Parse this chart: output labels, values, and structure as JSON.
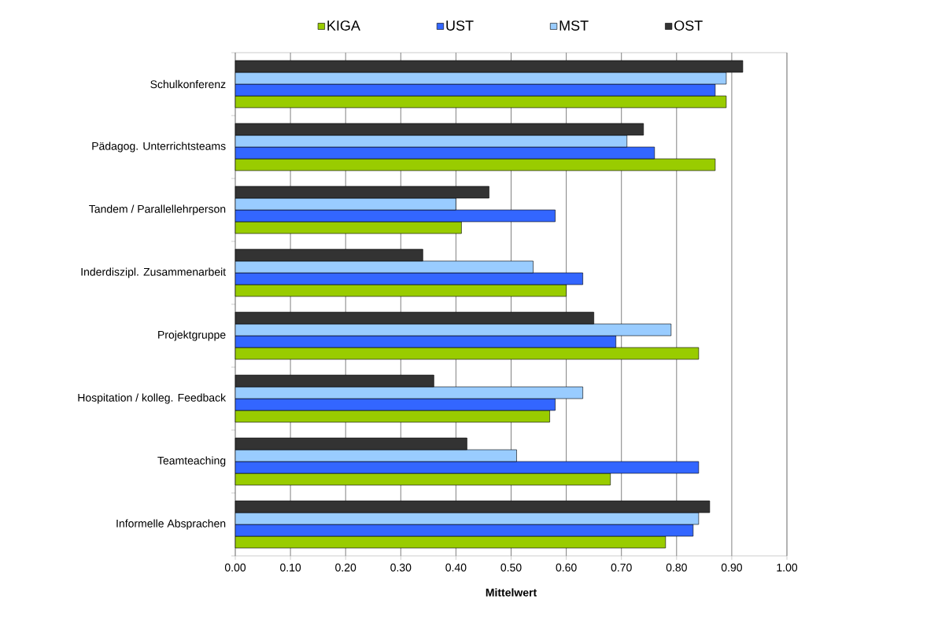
{
  "chart_data": {
    "type": "bar",
    "orientation": "horizontal",
    "categories": [
      "Schulkonferenz",
      "Pädagog. Unterrichtsteams",
      "Tandem / Parallellehrperson",
      "Inderdiszipl. Zusammenarbeit",
      "Projektgruppe",
      "Hospitation / kolleg. Feedback",
      "Teamteaching",
      "Informelle Absprachen"
    ],
    "series": [
      {
        "name": "KIGA",
        "color": "#99cc00",
        "values": [
          0.89,
          0.87,
          0.41,
          0.6,
          0.84,
          0.57,
          0.68,
          0.78
        ]
      },
      {
        "name": "UST",
        "color": "#3366ff",
        "values": [
          0.87,
          0.76,
          0.58,
          0.63,
          0.69,
          0.58,
          0.84,
          0.83
        ]
      },
      {
        "name": "MST",
        "color": "#99ccff",
        "values": [
          0.89,
          0.71,
          0.4,
          0.54,
          0.79,
          0.63,
          0.51,
          0.84
        ]
      },
      {
        "name": "OST",
        "color": "#333333",
        "values": [
          0.92,
          0.74,
          0.46,
          0.34,
          0.65,
          0.36,
          0.42,
          0.86
        ]
      }
    ],
    "xlim": [
      0,
      1
    ],
    "xticks": [
      {
        "value": 0,
        "label": "0.00"
      },
      {
        "value": 0.1,
        "label": "0.10"
      },
      {
        "value": 0.2,
        "label": "0.20"
      },
      {
        "value": 0.3,
        "label": "0.30"
      },
      {
        "value": 0.4,
        "label": "0.40"
      },
      {
        "value": 0.5,
        "label": "0.50"
      },
      {
        "value": 0.6,
        "label": "0.60"
      },
      {
        "value": 0.7,
        "label": "0.70"
      },
      {
        "value": 0.8,
        "label": "0.80"
      },
      {
        "value": 0.9,
        "label": "0.90"
      },
      {
        "value": 1,
        "label": "1.00"
      }
    ],
    "xlabel": "Mittelwert",
    "grid": "x",
    "legend": "top"
  }
}
